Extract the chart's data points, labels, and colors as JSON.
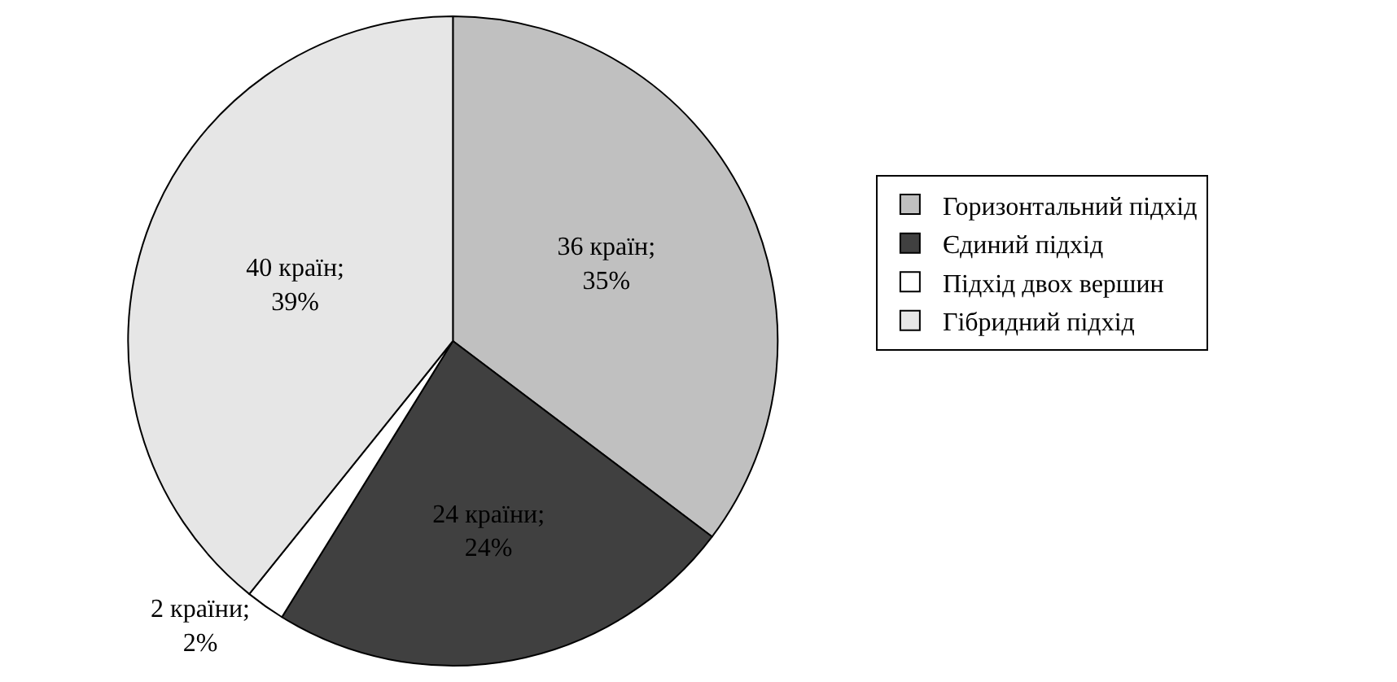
{
  "chart_data": {
    "type": "pie",
    "categories": [
      "Горизонтальний підхід",
      "Єдиний підхід",
      "Підхід двох вершин",
      "Гібридний підхід"
    ],
    "values": [
      36,
      24,
      2,
      40
    ],
    "colors": [
      "#c0c0c0",
      "#404040",
      "#ffffff",
      "#e6e6e6"
    ],
    "value_labels": [
      "36 країн; 35%",
      "24 країни; 24%",
      "2 країни; 2%",
      "40 країн; 39%"
    ],
    "legend": "right"
  }
}
